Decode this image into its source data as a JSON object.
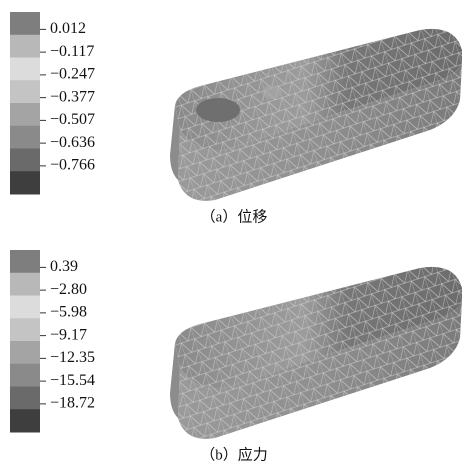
{
  "panels": [
    {
      "legend": [
        "0.012",
        "−0.117",
        "−0.247",
        "−0.377",
        "−0.507",
        "−0.636",
        "−0.766"
      ],
      "caption": "（a）位移"
    },
    {
      "legend": [
        "0.39",
        "−2.80",
        "−5.98",
        "−9.17",
        "−12.35",
        "−15.54",
        "−18.72"
      ],
      "caption": "（b）应力"
    }
  ]
}
